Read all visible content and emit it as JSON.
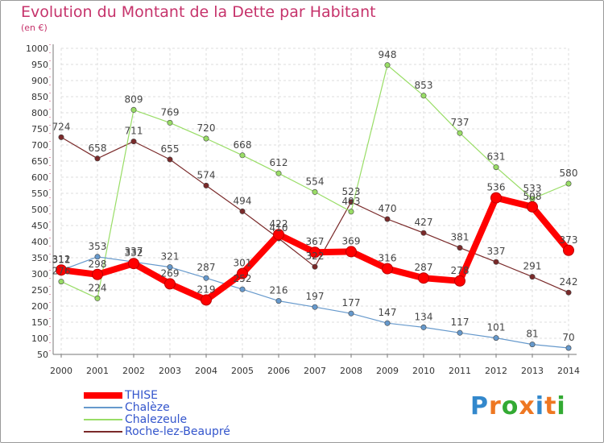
{
  "chart_data": {
    "type": "line",
    "title": "Evolution du Montant de la Dette par Habitant",
    "unit": "(en €)",
    "x": [
      "2000",
      "2001",
      "2002",
      "2003",
      "2004",
      "2005",
      "2006",
      "2007",
      "2008",
      "2009",
      "2010",
      "2011",
      "2012",
      "2013",
      "2014"
    ],
    "ylim": [
      50,
      1000
    ],
    "yticks": [
      50,
      100,
      150,
      200,
      250,
      300,
      350,
      400,
      450,
      500,
      550,
      600,
      650,
      700,
      750,
      800,
      850,
      900,
      950,
      1000
    ],
    "grid": true,
    "legend_position": "bottom-left",
    "series": [
      {
        "name": "Roche-lez-Beaupré",
        "color": "#7a2a2a",
        "values": [
          724,
          658,
          711,
          655,
          574,
          494,
          410,
          322,
          523,
          470,
          427,
          381,
          337,
          291,
          242
        ]
      },
      {
        "name": "Chalezeule",
        "color": "#99dd66",
        "values": [
          276,
          224,
          809,
          769,
          720,
          668,
          612,
          554,
          493,
          948,
          853,
          737,
          631,
          533,
          580
        ]
      },
      {
        "name": "Chalèze",
        "color": "#6699cc",
        "values": [
          311,
          353,
          337,
          321,
          287,
          252,
          216,
          197,
          177,
          147,
          134,
          117,
          101,
          81,
          70
        ]
      },
      {
        "name": "THISE",
        "color": "#ff0000",
        "values": [
          312,
          298,
          332,
          269,
          219,
          301,
          422,
          367,
          369,
          316,
          287,
          278,
          536,
          508,
          373
        ]
      }
    ],
    "legend_order": [
      "THISE",
      "Chalèze",
      "Chalezeule",
      "Roche-lez-Beaupré"
    ]
  },
  "logo": {
    "text": "Proxiti",
    "letters": [
      "P",
      "r",
      "o",
      "x",
      "i",
      "t",
      "i"
    ],
    "colors": [
      "#3388cc",
      "#ee7722",
      "#33aa33",
      "#ee7722",
      "#3388cc",
      "#ee7722",
      "#33aa33"
    ]
  }
}
